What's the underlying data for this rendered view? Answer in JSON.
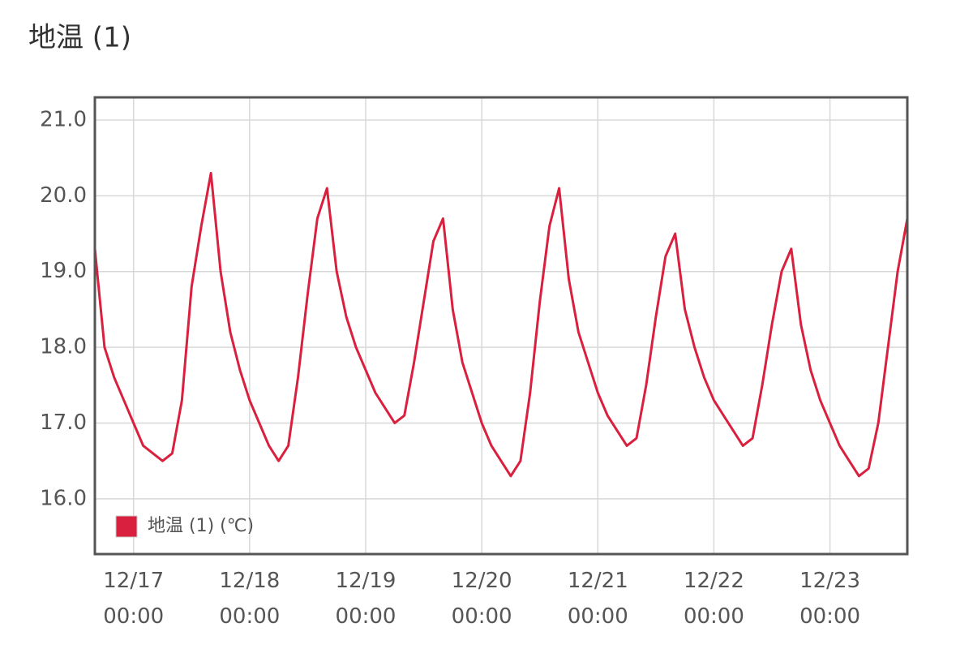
{
  "chart_data": {
    "type": "line",
    "title": "地温 (1)",
    "x": [
      "12/16 16:00",
      "12/16 18:00",
      "12/16 20:00",
      "12/16 22:00",
      "12/17 00:00",
      "12/17 02:00",
      "12/17 04:00",
      "12/17 06:00",
      "12/17 08:00",
      "12/17 10:00",
      "12/17 12:00",
      "12/17 14:00",
      "12/17 16:00",
      "12/17 18:00",
      "12/17 20:00",
      "12/17 22:00",
      "12/18 00:00",
      "12/18 02:00",
      "12/18 04:00",
      "12/18 06:00",
      "12/18 08:00",
      "12/18 10:00",
      "12/18 12:00",
      "12/18 14:00",
      "12/18 16:00",
      "12/18 18:00",
      "12/18 20:00",
      "12/18 22:00",
      "12/19 00:00",
      "12/19 02:00",
      "12/19 04:00",
      "12/19 06:00",
      "12/19 08:00",
      "12/19 10:00",
      "12/19 12:00",
      "12/19 14:00",
      "12/19 16:00",
      "12/19 18:00",
      "12/19 20:00",
      "12/19 22:00",
      "12/20 00:00",
      "12/20 02:00",
      "12/20 04:00",
      "12/20 06:00",
      "12/20 08:00",
      "12/20 10:00",
      "12/20 12:00",
      "12/20 14:00",
      "12/20 16:00",
      "12/20 18:00",
      "12/20 20:00",
      "12/20 22:00",
      "12/21 00:00",
      "12/21 02:00",
      "12/21 04:00",
      "12/21 06:00",
      "12/21 08:00",
      "12/21 10:00",
      "12/21 12:00",
      "12/21 14:00",
      "12/21 16:00",
      "12/21 18:00",
      "12/21 20:00",
      "12/21 22:00",
      "12/22 00:00",
      "12/22 02:00",
      "12/22 04:00",
      "12/22 06:00",
      "12/22 08:00",
      "12/22 10:00",
      "12/22 12:00",
      "12/22 14:00",
      "12/22 16:00",
      "12/22 18:00",
      "12/22 20:00",
      "12/22 22:00",
      "12/23 00:00",
      "12/23 02:00",
      "12/23 04:00",
      "12/23 06:00",
      "12/23 08:00",
      "12/23 10:00",
      "12/23 12:00",
      "12/23 14:00",
      "12/23 16:00"
    ],
    "series": [
      {
        "name": "地温 (1) (℃)",
        "color": "#d9203e",
        "values": [
          19.3,
          18.0,
          17.6,
          17.3,
          17.0,
          16.7,
          16.6,
          16.5,
          16.6,
          17.3,
          18.8,
          19.6,
          20.3,
          19.0,
          18.2,
          17.7,
          17.3,
          17.0,
          16.7,
          16.5,
          16.7,
          17.6,
          18.7,
          19.7,
          20.1,
          19.0,
          18.4,
          18.0,
          17.7,
          17.4,
          17.2,
          17.0,
          17.1,
          17.8,
          18.6,
          19.4,
          19.7,
          18.5,
          17.8,
          17.4,
          17.0,
          16.7,
          16.5,
          16.3,
          16.5,
          17.4,
          18.6,
          19.6,
          20.1,
          18.9,
          18.2,
          17.8,
          17.4,
          17.1,
          16.9,
          16.7,
          16.8,
          17.5,
          18.4,
          19.2,
          19.5,
          18.5,
          18.0,
          17.6,
          17.3,
          17.1,
          16.9,
          16.7,
          16.8,
          17.5,
          18.3,
          19.0,
          19.3,
          18.3,
          17.7,
          17.3,
          17.0,
          16.7,
          16.5,
          16.3,
          16.4,
          17.0,
          18.0,
          19.0,
          19.7
        ]
      }
    ],
    "xlim": [
      "12/16 16:00",
      "12/23 16:00"
    ],
    "xticks": [
      "12/17 00:00",
      "12/18 00:00",
      "12/19 00:00",
      "12/20 00:00",
      "12/21 00:00",
      "12/22 00:00",
      "12/23 00:00"
    ],
    "ylim": [
      15.27,
      21.3
    ],
    "yticks": [
      {
        "value": 16,
        "label": "16.0"
      },
      {
        "value": 17,
        "label": "17.0"
      },
      {
        "value": 18,
        "label": "18.0"
      },
      {
        "value": 19,
        "label": "19.0"
      },
      {
        "value": 20,
        "label": "20.0"
      },
      {
        "value": 21,
        "label": "21.0"
      }
    ],
    "grid": true,
    "legend": "lower-left"
  }
}
